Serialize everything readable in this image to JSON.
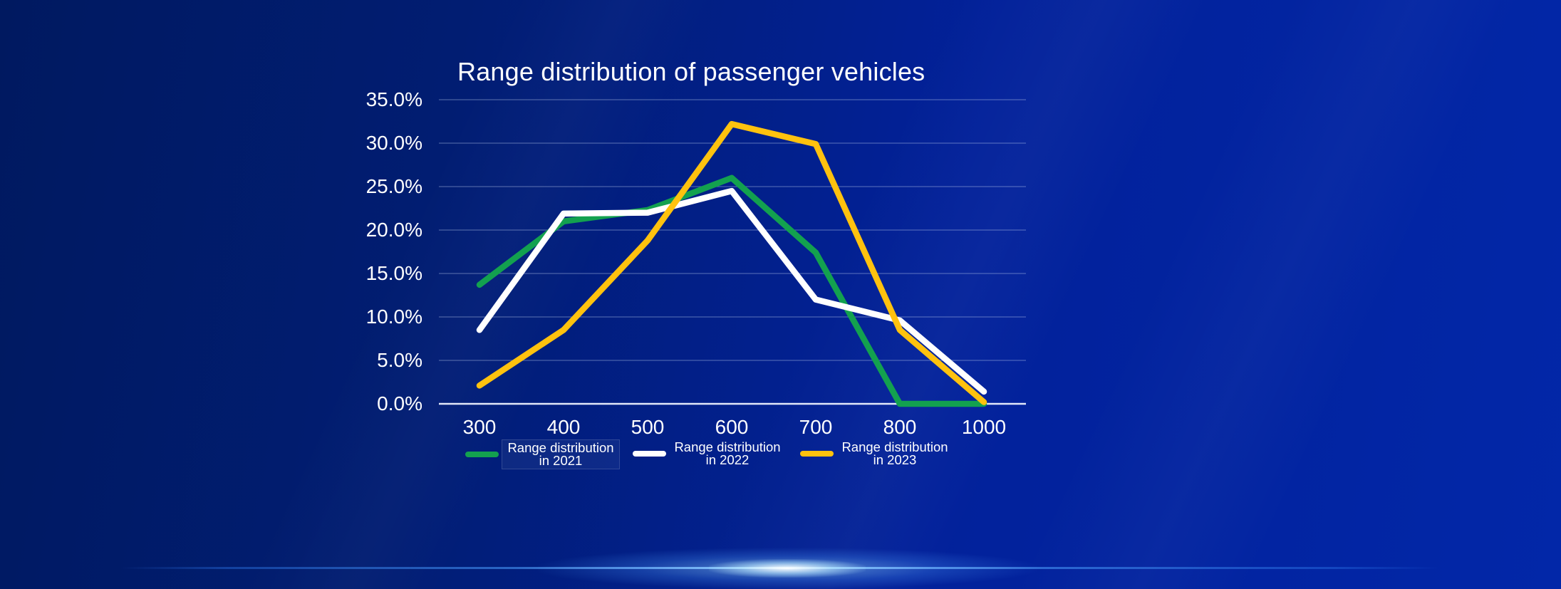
{
  "title": "Range distribution of passenger vehicles",
  "colors": {
    "background_left": "#001960",
    "background_right": "#0227A8",
    "grid_line": "rgba(195,208,238,0.38)",
    "axis_line": "rgba(238,243,255,0.95)",
    "flare_accent": "#7EC8FF",
    "series_2021": "#13A14F",
    "series_2022": "#FFFFFF",
    "series_2023": "#FFC20E"
  },
  "chart_data": {
    "type": "line",
    "title": "Range distribution of passenger vehicles",
    "xlabel": "",
    "ylabel": "",
    "x_labels": [
      "300",
      "400",
      "500",
      "600",
      "700",
      "800",
      "1000"
    ],
    "y_tick_labels": [
      "35.0%",
      "30.0%",
      "25.0%",
      "20.0%",
      "15.0%",
      "10.0%",
      "5.0%",
      "0.0%"
    ],
    "ylim": [
      0,
      35
    ],
    "grid": true,
    "legend_position": "bottom",
    "series": [
      {
        "name": "Range distribution in 2021",
        "color": "#13A14F",
        "values": [
          13.7,
          21.0,
          22.3,
          26.0,
          17.4,
          0.0,
          0.0
        ],
        "highlighted": true
      },
      {
        "name": "Range distribution in 2022",
        "color": "#FFFFFF",
        "values": [
          8.5,
          21.9,
          22.0,
          24.5,
          12.0,
          9.6,
          1.4
        ],
        "highlighted": false
      },
      {
        "name": "Range distribution in 2023",
        "color": "#FFC20E",
        "values": [
          2.1,
          8.5,
          18.8,
          32.2,
          29.9,
          8.5,
          0.2
        ],
        "highlighted": false
      }
    ]
  }
}
